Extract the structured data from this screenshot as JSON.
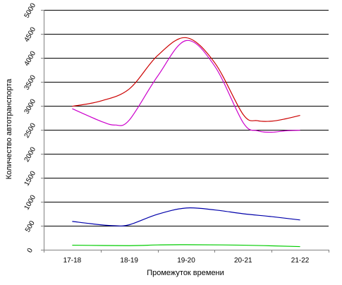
{
  "chart_data": {
    "type": "line",
    "xlabel": "Промежуток времени",
    "ylabel": "Количество автотранспорта",
    "categories": [
      "17-18",
      "18-19",
      "19-20",
      "20-21",
      "21-22"
    ],
    "ylim": [
      0,
      5000
    ],
    "yticks": [
      0,
      500,
      1000,
      1500,
      2000,
      2500,
      3000,
      3500,
      4000,
      4500,
      5000
    ],
    "grid": true,
    "legend": "none",
    "series": [
      {
        "color": "#cc0000",
        "x": [
          0,
          0.5,
          1,
          1.5,
          2,
          2.5,
          3,
          3.25,
          3.5,
          3.75,
          4
        ],
        "values": [
          2990,
          3100,
          3350,
          4050,
          4420,
          3900,
          2820,
          2690,
          2680,
          2730,
          2800
        ]
      },
      {
        "color": "#cc00cc",
        "x": [
          0,
          0.5,
          0.75,
          1,
          1.5,
          2,
          2.5,
          3,
          3.25,
          3.5,
          3.75,
          4
        ],
        "values": [
          2940,
          2680,
          2600,
          2700,
          3620,
          4360,
          3830,
          2650,
          2480,
          2450,
          2480,
          2490
        ]
      },
      {
        "color": "#0000aa",
        "x": [
          0,
          0.5,
          0.75,
          1,
          1.5,
          2,
          2.5,
          3,
          3.5,
          4
        ],
        "values": [
          590,
          520,
          500,
          520,
          740,
          870,
          830,
          750,
          690,
          620
        ]
      },
      {
        "color": "#00cc00",
        "x": [
          0,
          1,
          1.5,
          2,
          3,
          4
        ],
        "values": [
          95,
          85,
          100,
          105,
          95,
          65
        ]
      }
    ]
  }
}
